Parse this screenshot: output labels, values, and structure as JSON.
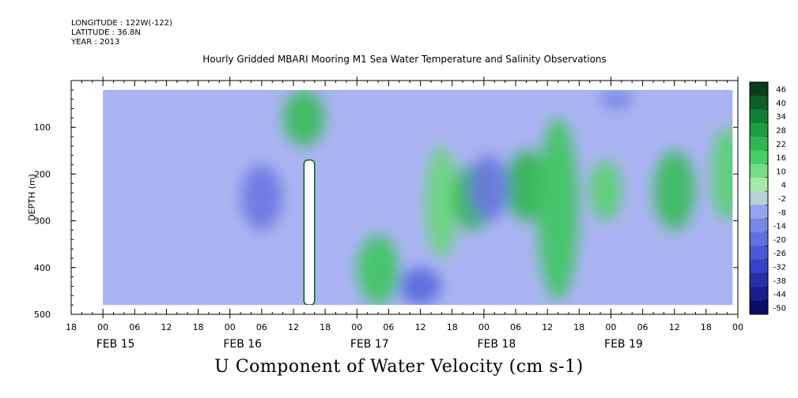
{
  "header": {
    "longitude": "LONGITUDE : 122W(-122)",
    "latitude": "LATITUDE : 36.8N",
    "year": "YEAR : 2013",
    "title": "Hourly Gridded MBARI Mooring M1 Sea Water Temperature and Salinity Observations"
  },
  "footer_title": "U Component of Water Velocity (cm s-1)",
  "chart_data": {
    "type": "heatmap",
    "title": "Hourly Gridded MBARI Mooring M1 Sea Water Temperature and Salinity Observations",
    "variable": "U Component of Water Velocity (cm s-1)",
    "xlabel": "",
    "ylabel": "DEPTH (m)",
    "y_axis": {
      "range": [
        500,
        0
      ],
      "inverted": true,
      "ticks": [
        100,
        200,
        300,
        400,
        500
      ]
    },
    "x_axis": {
      "range_hours": [
        "2013-02-14 18:00",
        "2013-02-20 00:00"
      ],
      "hour_ticks": [
        "18",
        "00",
        "06",
        "12",
        "18",
        "00",
        "06",
        "12",
        "18",
        "00",
        "06",
        "12",
        "18",
        "00",
        "06",
        "12",
        "18",
        "00",
        "06",
        "12",
        "18",
        "00"
      ],
      "day_labels": [
        "FEB 15",
        "FEB 16",
        "FEB 17",
        "FEB 18",
        "FEB 19"
      ]
    },
    "data_extent": {
      "time_start": "2013-02-15 00:00",
      "time_end": "2013-02-19 23:00",
      "depth_top": 20,
      "depth_bottom": 480
    },
    "colorbar": {
      "labels": [
        "46",
        "40",
        "34",
        "28",
        "22",
        "16",
        "10",
        "4",
        "-2",
        "-8",
        "-14",
        "-20",
        "-26",
        "-32",
        "-38",
        "-44",
        "-50"
      ],
      "max_color": "#0c3d1a",
      "min_color": "#0a0a6e"
    },
    "missing_data": [
      {
        "time_start": "2013-02-16 14:00",
        "time_end": "2013-02-16 16:00",
        "depth_top": 170,
        "depth_bottom": 480
      }
    ],
    "grid": false,
    "features": [
      {
        "time": "2013-02-16 14:00",
        "depth_range": [
          20,
          140
        ],
        "u": 20
      },
      {
        "time": "2013-02-17 04:00",
        "depth_range": [
          330,
          480
        ],
        "u": 18
      },
      {
        "time": "2013-02-17 16:00",
        "depth_range": [
          140,
          380
        ],
        "u": 12
      },
      {
        "time": "2013-02-17 22:00",
        "depth_range": [
          180,
          320
        ],
        "u": 22
      },
      {
        "time": "2013-02-18 08:00",
        "depth_range": [
          150,
          300
        ],
        "u": 22
      },
      {
        "time": "2013-02-18 14:00",
        "depth_range": [
          80,
          470
        ],
        "u": 18
      },
      {
        "time": "2013-02-18 23:00",
        "depth_range": [
          170,
          300
        ],
        "u": 14
      },
      {
        "time": "2013-02-19 12:00",
        "depth_range": [
          150,
          320
        ],
        "u": 20
      },
      {
        "time": "2013-02-19 22:00",
        "depth_range": [
          100,
          300
        ],
        "u": 14
      },
      {
        "time": "2013-02-16 06:00",
        "depth_range": [
          180,
          320
        ],
        "u": -18
      },
      {
        "time": "2013-02-17 12:00",
        "depth_range": [
          400,
          480
        ],
        "u": -22
      },
      {
        "time": "2013-02-18 01:00",
        "depth_range": [
          160,
          300
        ],
        "u": -18
      },
      {
        "time": "2013-02-19 01:00",
        "depth_range": [
          20,
          60
        ],
        "u": -16
      }
    ]
  }
}
